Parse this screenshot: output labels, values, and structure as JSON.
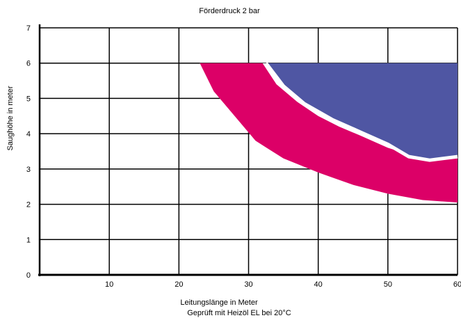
{
  "chart_data": {
    "type": "area",
    "title": "Förderdruck 2 bar",
    "xlabel": "Leitungslänge in Meter",
    "ylabel": "Saughöhe in meter",
    "note": "Geprüft mit Heizöl EL bei 20°C",
    "xlim": [
      0,
      60
    ],
    "ylim": [
      0,
      7
    ],
    "x_ticks": [
      10,
      20,
      30,
      40,
      50,
      60
    ],
    "y_ticks": [
      0,
      1,
      2,
      3,
      4,
      5,
      6,
      7
    ],
    "grid": true,
    "legend": "none",
    "series": [
      {
        "color": "#dc0067",
        "upper": [
          [
            23,
            6
          ],
          [
            25,
            5.2
          ],
          [
            28,
            4.5
          ],
          [
            31,
            3.8
          ],
          [
            35,
            3.3
          ],
          [
            40,
            2.9
          ],
          [
            45,
            2.55
          ],
          [
            50,
            2.3
          ],
          [
            55,
            2.12
          ],
          [
            60,
            2.05
          ]
        ],
        "lower": [
          [
            32,
            6
          ],
          [
            34,
            5.4
          ],
          [
            37,
            4.9
          ],
          [
            40,
            4.5
          ],
          [
            43,
            4.2
          ],
          [
            46,
            3.95
          ],
          [
            50,
            3.6
          ],
          [
            54,
            3.35
          ],
          [
            57,
            3.3
          ],
          [
            60,
            3.35
          ]
        ]
      },
      {
        "color": "#4f56a3",
        "upper": [
          [
            32.5,
            6
          ],
          [
            60,
            6
          ]
        ],
        "lower": [
          [
            32.5,
            6
          ],
          [
            35,
            5.35
          ],
          [
            38,
            4.85
          ],
          [
            42,
            4.4
          ],
          [
            46,
            4.05
          ],
          [
            50,
            3.7
          ],
          [
            53,
            3.35
          ],
          [
            56,
            3.25
          ],
          [
            60,
            3.35
          ]
        ]
      }
    ]
  }
}
